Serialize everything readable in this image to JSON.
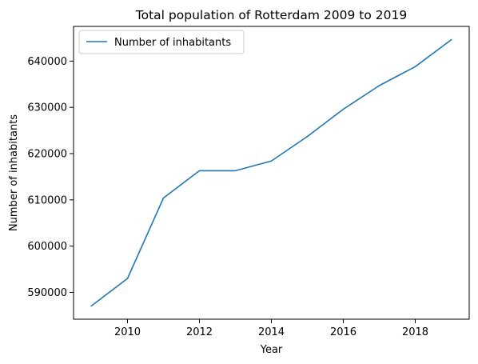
{
  "chart_data": {
    "type": "line",
    "title": "Total population of Rotterdam 2009 to 2019",
    "xlabel": "Year",
    "ylabel": "Number of inhabitants",
    "x": [
      2009,
      2010,
      2011,
      2012,
      2013,
      2014,
      2015,
      2016,
      2017,
      2018,
      2019
    ],
    "series": [
      {
        "name": "Number of inhabitants",
        "color": "#1f77b4",
        "values": [
          587100,
          593000,
          610400,
          616300,
          616300,
          618400,
          623700,
          629600,
          634700,
          638800,
          644600
        ]
      }
    ],
    "xticks": [
      2010,
      2012,
      2014,
      2016,
      2018
    ],
    "yticks": [
      590000,
      600000,
      610000,
      620000,
      630000,
      640000
    ],
    "xlim": [
      2008.5,
      2019.5
    ],
    "ylim": [
      584200,
      647500
    ],
    "grid": false,
    "legend_position": "top-left"
  }
}
